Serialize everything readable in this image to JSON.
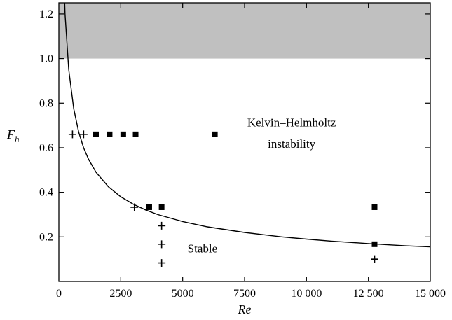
{
  "chart_data": {
    "type": "scatter",
    "title": "",
    "xlabel": "Re",
    "ylabel": "F",
    "ylabel_subscript": "h",
    "xlim": [
      0,
      15000
    ],
    "ylim": [
      0,
      1.25
    ],
    "grid": false,
    "x_ticks": [
      0,
      2500,
      5000,
      7500,
      10000,
      12500,
      15000
    ],
    "x_tick_labels": [
      "0",
      "2500",
      "5000",
      "7500",
      "10 000",
      "12 500",
      "15 000"
    ],
    "y_ticks": [
      0.2,
      0.4,
      0.6,
      0.8,
      1.0,
      1.2
    ],
    "y_tick_labels": [
      "0.2",
      "0.4",
      "0.6",
      "0.8",
      "1.0",
      "1.2"
    ],
    "shaded_region": {
      "y_from": 1.0,
      "y_to": 1.25,
      "color": "#c0c0c0"
    },
    "boundary_curve": {
      "description": "F_h = C / sqrt(Re)",
      "points": [
        [
          150,
          1.55
        ],
        [
          250,
          1.2
        ],
        [
          400,
          0.95
        ],
        [
          600,
          0.775
        ],
        [
          800,
          0.67
        ],
        [
          1000,
          0.6
        ],
        [
          1200,
          0.548
        ],
        [
          1500,
          0.49
        ],
        [
          2000,
          0.425
        ],
        [
          2500,
          0.38
        ],
        [
          3000,
          0.347
        ],
        [
          3500,
          0.321
        ],
        [
          4000,
          0.3
        ],
        [
          5000,
          0.269
        ],
        [
          6000,
          0.245
        ],
        [
          7500,
          0.22
        ],
        [
          9000,
          0.2
        ],
        [
          10000,
          0.19
        ],
        [
          11000,
          0.181
        ],
        [
          12500,
          0.17
        ],
        [
          14000,
          0.16
        ],
        [
          15000,
          0.155
        ]
      ]
    },
    "series": [
      {
        "marker": "plus",
        "x": [
          550,
          1000,
          3050,
          4150,
          4150,
          4150,
          12750
        ],
        "y": [
          0.66,
          0.66,
          0.333,
          0.25,
          0.167,
          0.083,
          0.1
        ]
      },
      {
        "marker": "square",
        "x": [
          1500,
          2050,
          2600,
          3100,
          3650,
          4150,
          6300,
          12750,
          12750
        ],
        "y": [
          0.66,
          0.66,
          0.66,
          0.66,
          0.333,
          0.333,
          0.66,
          0.333,
          0.167
        ]
      }
    ],
    "annotations": [
      {
        "text": "Kelvin–Helmholtz",
        "x": 9400,
        "y": 0.695
      },
      {
        "text": "instability",
        "x": 9400,
        "y": 0.6
      },
      {
        "text": "Stable",
        "x": 5800,
        "y": 0.13
      }
    ],
    "colors": {
      "shade": "#c0c0c0",
      "ink": "#000000"
    }
  }
}
